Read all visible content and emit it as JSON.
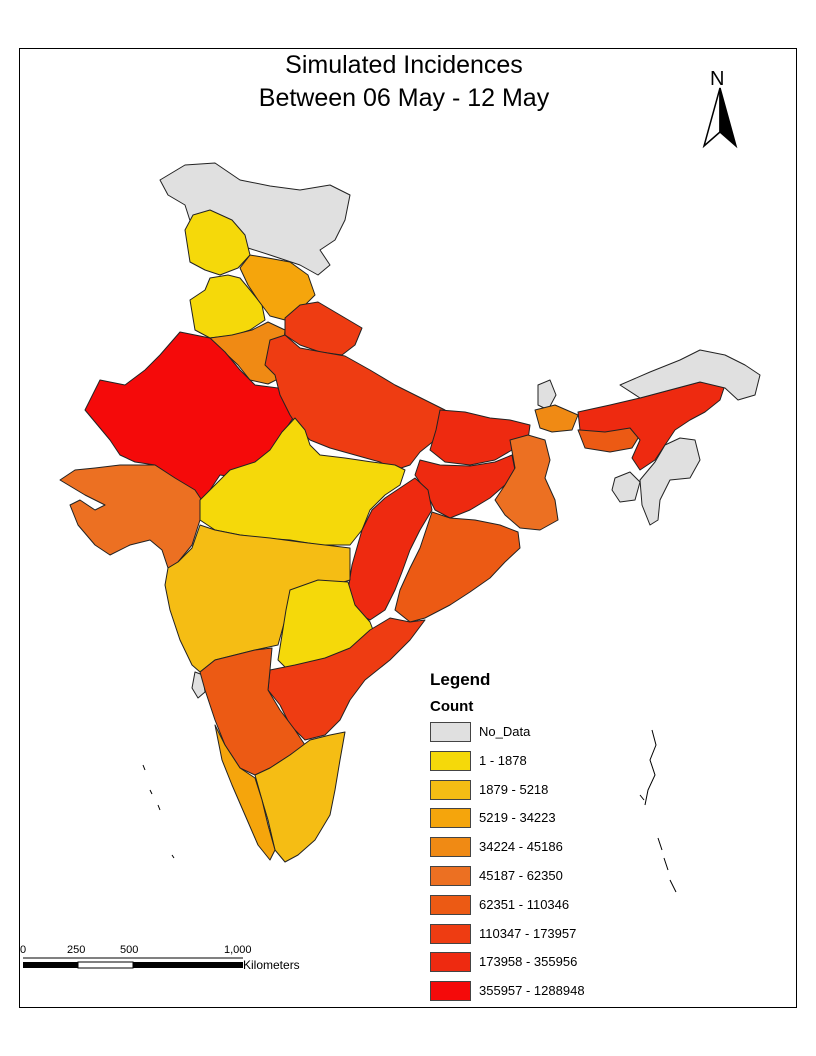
{
  "title": {
    "line1": "Simulated Incidences",
    "line2": "Between 06 May - 12 May"
  },
  "north_arrow": {
    "letter": "N"
  },
  "legend": {
    "heading": "Legend",
    "subheading": "Count",
    "classes": [
      {
        "label": "No_Data",
        "color": "#e0e0e0"
      },
      {
        "label": "1 - 1878",
        "color": "#f5d90a"
      },
      {
        "label": "1879 - 5218",
        "color": "#f5bd14"
      },
      {
        "label": "5219 - 34223",
        "color": "#f5a50c"
      },
      {
        "label": "34224 - 45186",
        "color": "#f08a14"
      },
      {
        "label": "45187 - 62350",
        "color": "#ec7022"
      },
      {
        "label": "62351 - 110346",
        "color": "#ec5a14"
      },
      {
        "label": "110347 - 173957",
        "color": "#ee3c12"
      },
      {
        "label": "173958 - 355956",
        "color": "#ee2a10"
      },
      {
        "label": "355957 - 1288948",
        "color": "#f50a0a"
      }
    ]
  },
  "scale": {
    "ticks": [
      "0",
      "250",
      "500",
      "1,000"
    ],
    "unit": "Kilometers"
  }
}
